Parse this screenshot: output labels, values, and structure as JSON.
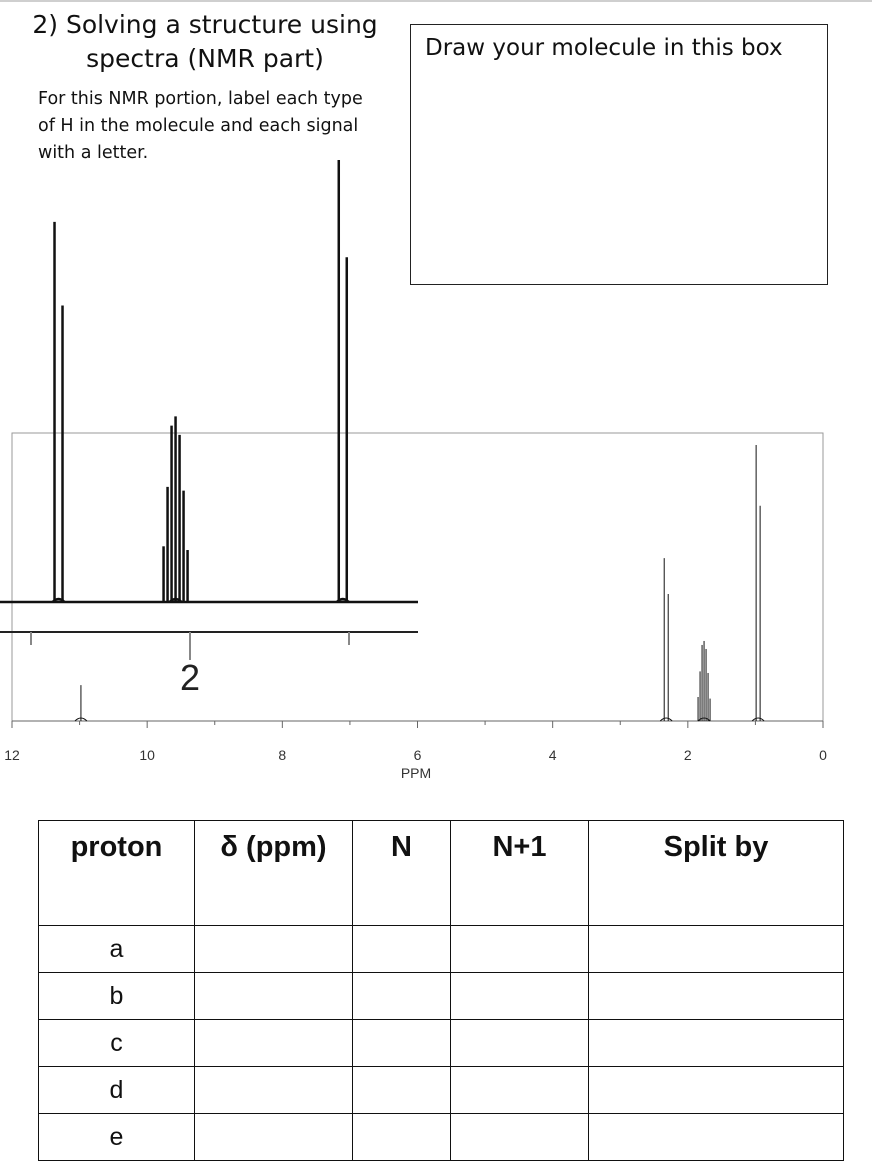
{
  "heading": {
    "title": "2) Solving a structure using spectra (NMR part)",
    "instructions": "For this NMR portion, label each type of H in the molecule and each signal with a letter."
  },
  "draw_box": {
    "label": "Draw your molecule in this box"
  },
  "chart_data": {
    "type": "line",
    "title": "",
    "xlabel": "PPM",
    "ylabel": "",
    "x_reversed": true,
    "xlim": [
      0,
      12
    ],
    "tick_labels": [
      "12",
      "10",
      "8",
      "6",
      "4",
      "2",
      "0"
    ],
    "grid": false,
    "signals": [
      {
        "shift_ppm": 10.98,
        "multiplicity": "singlet",
        "relative_height": 0.13
      },
      {
        "shift_ppm": 2.32,
        "multiplicity": "doublet",
        "relative_height": 0.59
      },
      {
        "shift_ppm": 1.76,
        "multiplicity": "multiplet",
        "relative_height": 0.29
      },
      {
        "shift_ppm": 0.96,
        "multiplicity": "doublet",
        "relative_height": 1.0
      }
    ],
    "inset": {
      "label": "2",
      "xlim_ppm": [
        2.6,
        0.6
      ],
      "signals": [
        {
          "shift_ppm": 2.32,
          "multiplicity": "doublet",
          "relative_height": 0.86
        },
        {
          "shift_ppm": 1.76,
          "multiplicity": "multiplet",
          "relative_height": 0.42
        },
        {
          "shift_ppm": 0.96,
          "multiplicity": "doublet",
          "relative_height": 1.0
        }
      ]
    }
  },
  "table": {
    "headers": [
      "proton",
      "δ (ppm)",
      "N",
      "N+1",
      "Split by"
    ],
    "rows": [
      {
        "proton": "a"
      },
      {
        "proton": "b"
      },
      {
        "proton": "c"
      },
      {
        "proton": "d"
      },
      {
        "proton": "e"
      }
    ]
  }
}
